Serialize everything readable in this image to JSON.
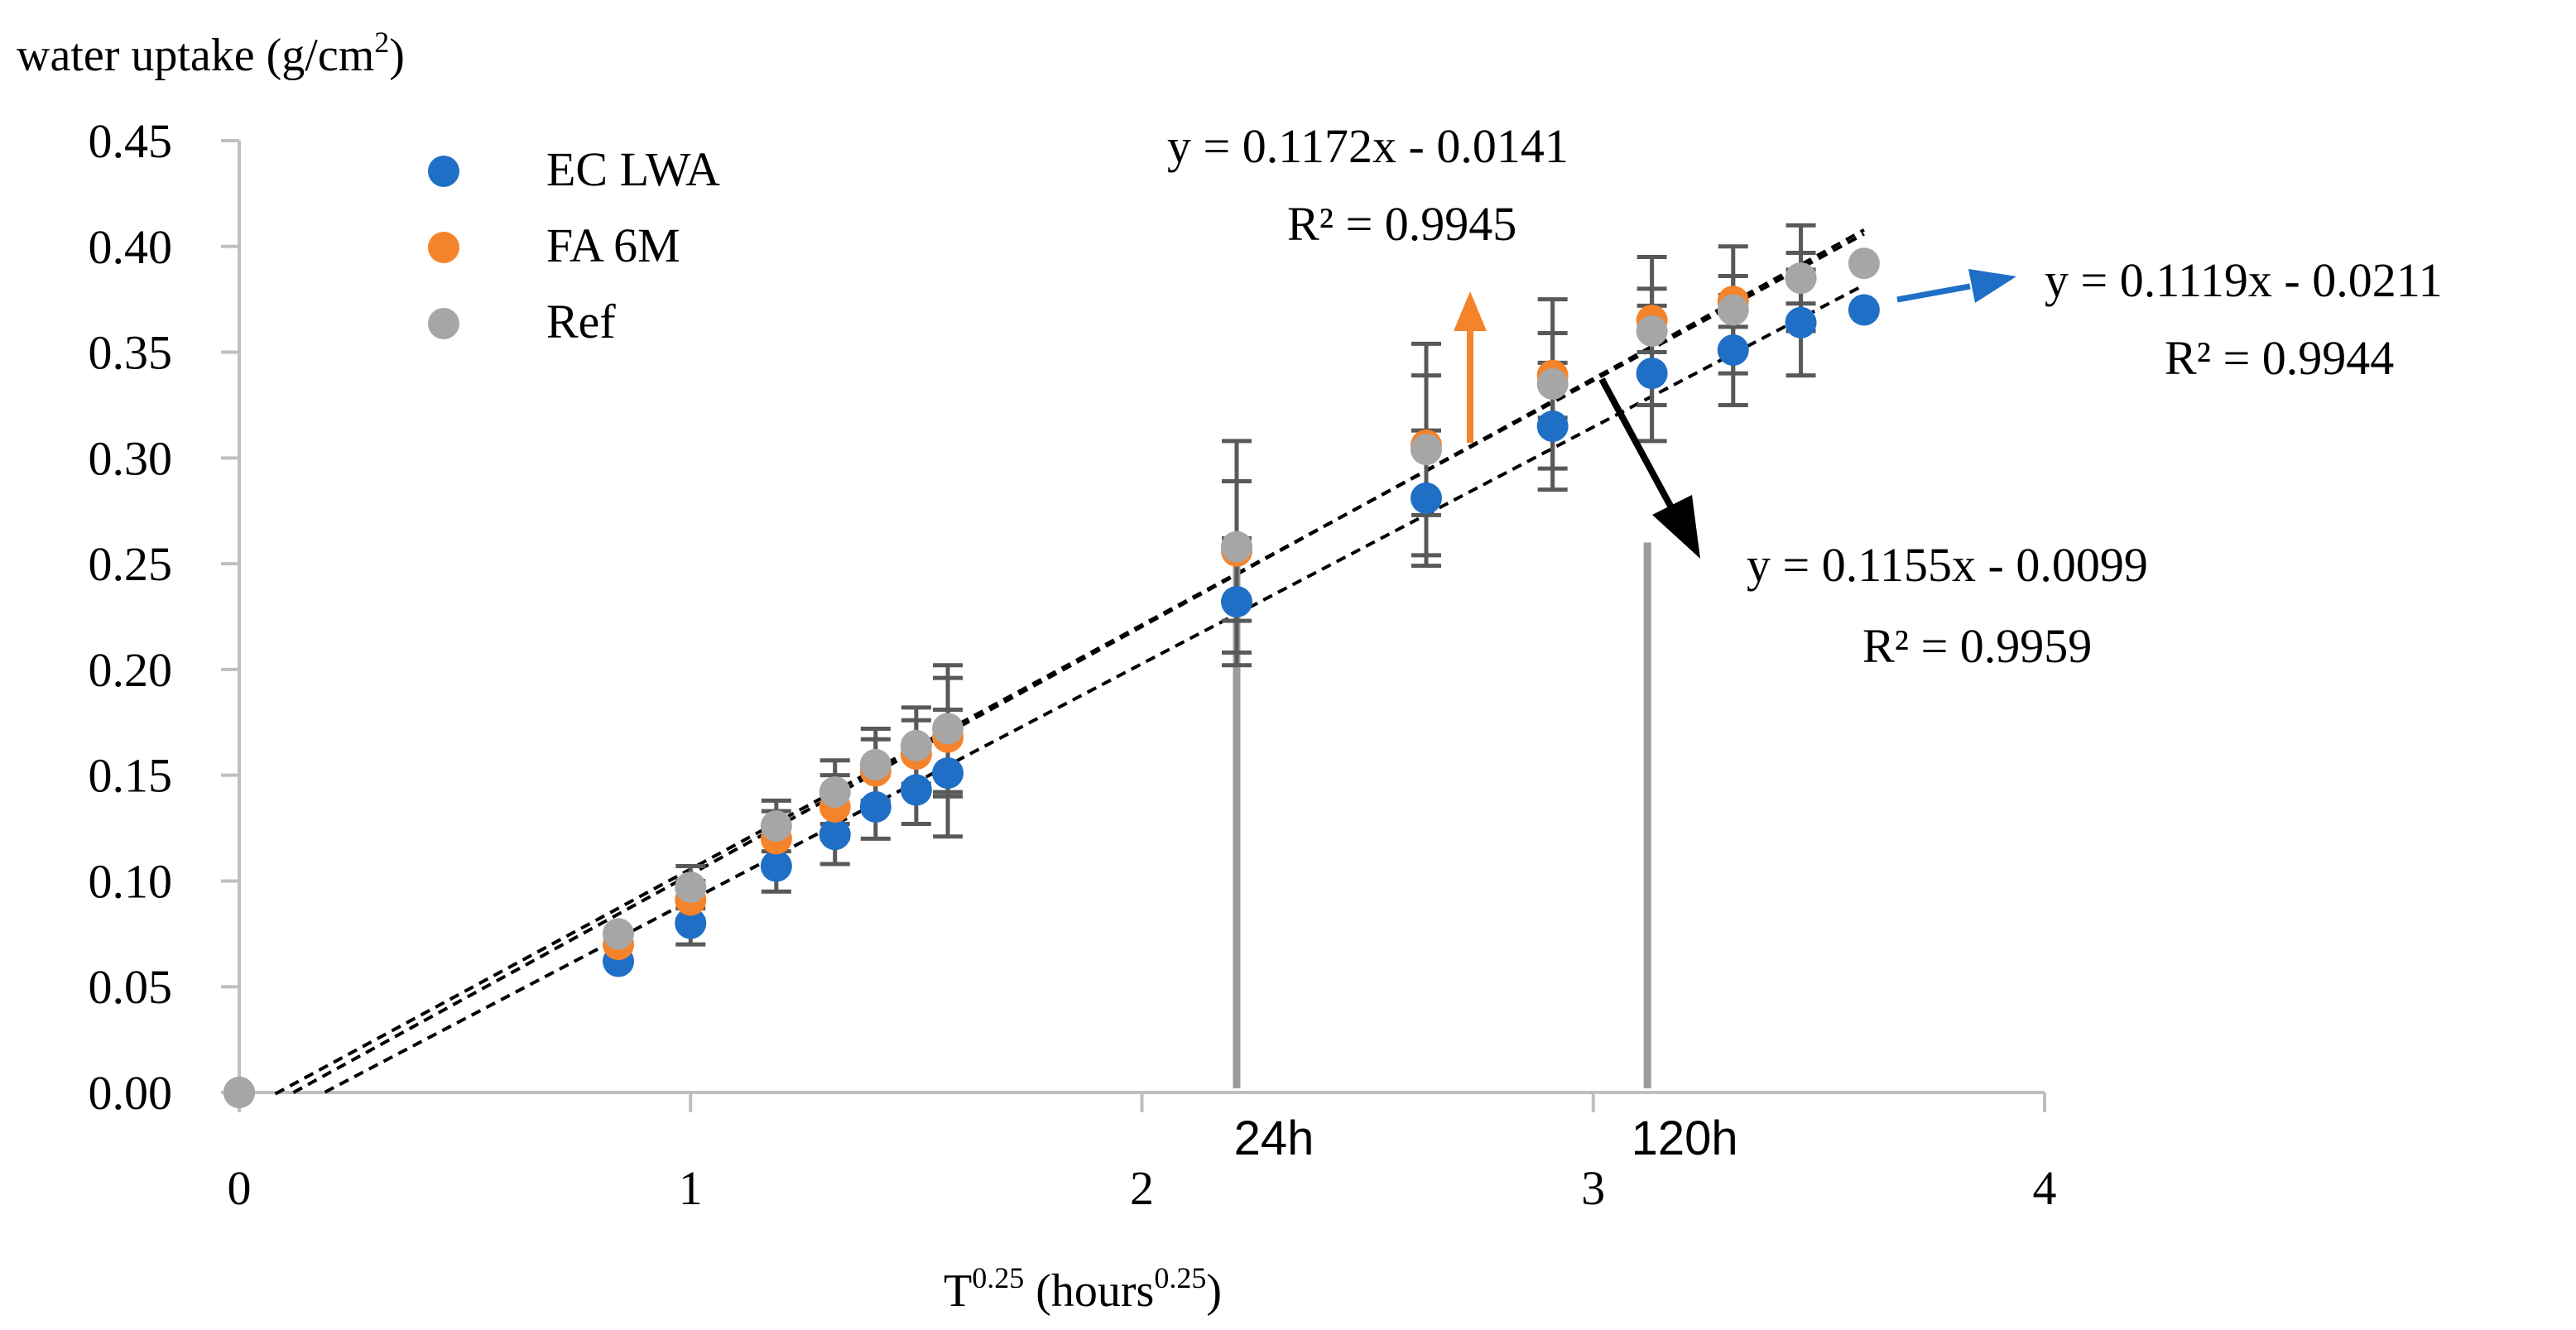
{
  "chart_data": {
    "type": "scatter",
    "title": "",
    "ylabel_main": "water uptake (g/cm",
    "ylabel_sup": "2",
    "ylabel_tail": ")",
    "xlabel_main": "T",
    "xlabel_sup": "0.25",
    "xlabel_mid": " (hours",
    "xlabel_sup2": "0.25",
    "xlabel_tail": ")",
    "xlim": [
      0,
      4
    ],
    "ylim": [
      0,
      0.45
    ],
    "xticks": [
      "0",
      "1",
      "2",
      "3",
      "4"
    ],
    "yticks": [
      "0.00",
      "0.05",
      "0.10",
      "0.15",
      "0.20",
      "0.25",
      "0.30",
      "0.35",
      "0.40",
      "0.45"
    ],
    "series": [
      {
        "name": "EC LWA",
        "color": "#1f6fc6",
        "x": [
          0,
          0.84,
          1.0,
          1.19,
          1.32,
          1.41,
          1.5,
          1.57,
          2.21,
          2.63,
          2.91,
          3.13,
          3.31,
          3.46,
          3.6
        ],
        "y": [
          0,
          0.062,
          0.08,
          0.107,
          0.122,
          0.135,
          0.143,
          0.151,
          0.232,
          0.281,
          0.315,
          0.34,
          0.351,
          0.364,
          0.37
        ],
        "err": [
          0,
          0,
          0.01,
          0.012,
          0.014,
          0.015,
          0.016,
          0.03,
          0.03,
          0.032,
          0.03,
          0.032,
          0.026,
          0.025,
          0
        ]
      },
      {
        "name": "FA 6M",
        "color": "#f5832a",
        "x": [
          0,
          0.84,
          1.0,
          1.19,
          1.32,
          1.41,
          1.5,
          1.57,
          2.21,
          2.63,
          2.91,
          3.13,
          3.31,
          3.46
        ],
        "y": [
          0,
          0.07,
          0.091,
          0.12,
          0.135,
          0.152,
          0.16,
          0.168,
          0.256,
          0.306,
          0.339,
          0.365,
          0.374,
          0.385
        ],
        "err": [
          0,
          0,
          0.009,
          0.013,
          0.015,
          0.015,
          0.016,
          0.028,
          0.033,
          0.033,
          0.02,
          0.015,
          0.012,
          0.012
        ]
      },
      {
        "name": "Ref",
        "color": "#a6a6a6",
        "x": [
          0,
          0.84,
          1.0,
          1.19,
          1.32,
          1.41,
          1.5,
          1.57,
          2.21,
          2.63,
          2.91,
          3.13,
          3.31,
          3.46,
          3.6
        ],
        "y": [
          0,
          0.075,
          0.097,
          0.126,
          0.142,
          0.155,
          0.164,
          0.172,
          0.258,
          0.304,
          0.335,
          0.36,
          0.37,
          0.385,
          0.392
        ],
        "err": [
          0,
          0,
          0.01,
          0.012,
          0.015,
          0.017,
          0.018,
          0.03,
          0.05,
          0.05,
          0.04,
          0.035,
          0.03,
          0.025,
          0
        ]
      }
    ],
    "trendlines": [
      {
        "slope": 0.1155,
        "intercept": -0.0099,
        "x0": 0.08,
        "x1": 3.6
      },
      {
        "slope": 0.1172,
        "intercept": -0.0141,
        "x0": 0.12,
        "x1": 3.6
      },
      {
        "slope": 0.1119,
        "intercept": -0.0211,
        "x0": 0.19,
        "x1": 3.6
      }
    ],
    "vertical_markers": [
      {
        "x": 2.21,
        "label": "24h"
      },
      {
        "x": 3.12,
        "label": "120h"
      }
    ],
    "annotations": [
      {
        "eq": "y = 0.1172x - 0.0141",
        "r2": "R² = 0.9945",
        "color": "#f5832a"
      },
      {
        "eq": "y = 0.1119x - 0.0211",
        "r2": "R² = 0.9944",
        "color": "#1f6fc6"
      },
      {
        "eq": "y = 0.1155x - 0.0099",
        "r2": "R² = 0.9959",
        "color": "#000000"
      }
    ],
    "legend_position": "top-left"
  }
}
